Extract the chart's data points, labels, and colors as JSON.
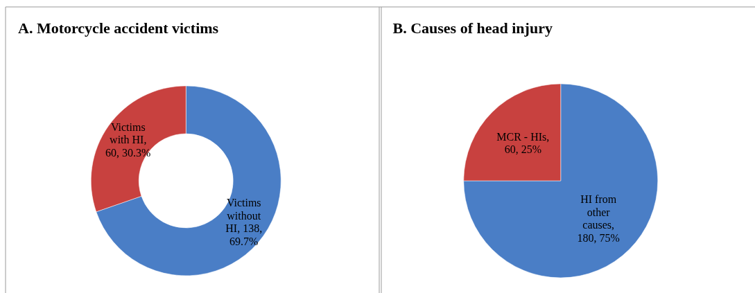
{
  "chart_data": [
    {
      "type": "donut",
      "title": "A. Motorcycle accident victims",
      "categories": [
        "Victims without HI",
        "Victims with HI"
      ],
      "values": [
        138,
        60
      ],
      "value_labels": [
        ", 138, 69.7%",
        ", 60, 30.3%"
      ],
      "colors": [
        "#4a7ec6",
        "#c8413f"
      ]
    },
    {
      "type": "pie",
      "title": "B. Causes of head injury",
      "categories": [
        "HI  from other causes",
        "MCR - HIs"
      ],
      "values": [
        180,
        60
      ],
      "value_labels": [
        ", 180, 75%",
        ", 60, 25%"
      ],
      "colors": [
        "#4a7ec6",
        "#c8413f"
      ]
    }
  ]
}
